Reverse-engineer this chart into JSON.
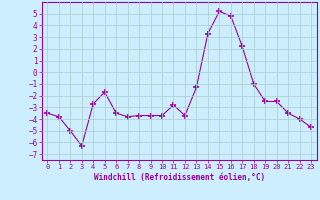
{
  "x": [
    0,
    1,
    2,
    3,
    4,
    5,
    6,
    7,
    8,
    9,
    10,
    11,
    12,
    13,
    14,
    15,
    16,
    17,
    18,
    19,
    20,
    21,
    22,
    23
  ],
  "y": [
    -3.5,
    -3.8,
    -5.0,
    -6.3,
    -2.7,
    -1.7,
    -3.5,
    -3.8,
    -3.7,
    -3.7,
    -3.7,
    -2.8,
    -3.7,
    -1.3,
    3.3,
    5.2,
    4.8,
    2.2,
    -1.0,
    -2.5,
    -2.5,
    -3.5,
    -4.0,
    -4.7
  ],
  "line_color": "#990099",
  "marker": "+",
  "marker_size": 4,
  "marker_lw": 1.2,
  "bg_color": "#cceeff",
  "grid_color": "#aacccc",
  "xlabel": "Windchill (Refroidissement éolien,°C)",
  "xlabel_color": "#990099",
  "tick_color": "#990099",
  "ylim": [
    -7.5,
    6
  ],
  "xlim": [
    -0.5,
    23.5
  ],
  "yticks": [
    -7,
    -6,
    -5,
    -4,
    -3,
    -2,
    -1,
    0,
    1,
    2,
    3,
    4,
    5
  ],
  "xticks": [
    0,
    1,
    2,
    3,
    4,
    5,
    6,
    7,
    8,
    9,
    10,
    11,
    12,
    13,
    14,
    15,
    16,
    17,
    18,
    19,
    20,
    21,
    22,
    23
  ],
  "figsize": [
    3.2,
    2.0
  ],
  "dpi": 100
}
